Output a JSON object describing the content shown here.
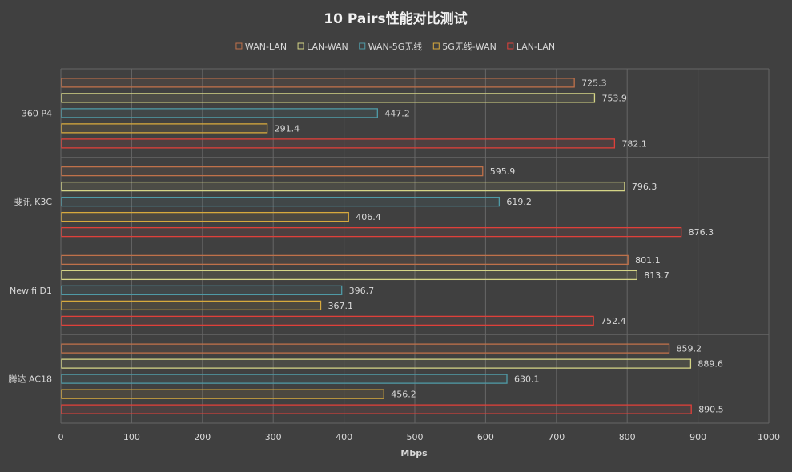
{
  "chart_data": {
    "type": "bar",
    "orientation": "horizontal",
    "title": "10 Pairs性能对比测试",
    "xlabel": "Mbps",
    "ylabel": "",
    "xlim": [
      0,
      1000
    ],
    "xticks": [
      "0",
      "100",
      "200",
      "300",
      "400",
      "500",
      "600",
      "700",
      "800",
      "900",
      "1000"
    ],
    "grid": true,
    "legend_position": "top",
    "categories": [
      "360 P4",
      "斐讯 K3C",
      "Newifi D1",
      "腾达 AC18"
    ],
    "series": [
      {
        "name": "WAN-LAN",
        "color": "#c0714a",
        "values": [
          725.3,
          595.9,
          801.1,
          859.2
        ],
        "labels": [
          "725.3",
          "595.9",
          "801.1",
          "859.2"
        ]
      },
      {
        "name": "LAN-WAN",
        "color": "#d4d486",
        "values": [
          753.9,
          796.3,
          813.7,
          889.6
        ],
        "labels": [
          "753.9",
          "796.3",
          "813.7",
          "889.6"
        ]
      },
      {
        "name": "WAN-5G无线",
        "color": "#4f9aa6",
        "values": [
          447.2,
          619.2,
          396.7,
          630.1
        ],
        "labels": [
          "447.2",
          "619.2",
          "396.7",
          "630.1"
        ]
      },
      {
        "name": "5G无线-WAN",
        "color": "#d7a93d",
        "values": [
          291.4,
          406.4,
          367.1,
          456.2
        ],
        "labels": [
          "291.4",
          "406.4",
          "367.1",
          "456.2"
        ]
      },
      {
        "name": "LAN-LAN",
        "color": "#e0403a",
        "values": [
          782.1,
          876.3,
          752.4,
          890.5
        ],
        "labels": [
          "782.1",
          "876.3",
          "752.4",
          "890.5"
        ]
      }
    ]
  }
}
